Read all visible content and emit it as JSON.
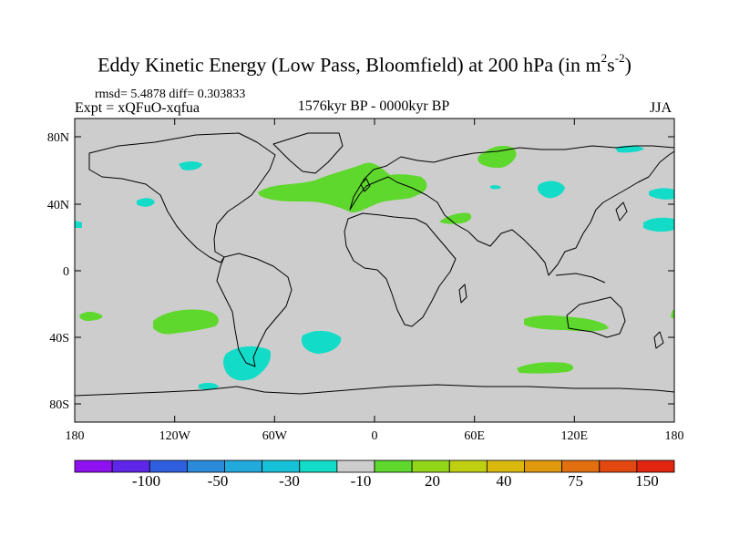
{
  "title": {
    "main": "Eddy Kinetic Energy (Low Pass, Bloomfield) at 200 hPa (in m",
    "sup1": "2",
    "mid": "s",
    "sup2": "-2",
    "close": ")"
  },
  "stats": {
    "rmsd": "rmsd= 5.4878 diff= 0.303833"
  },
  "experiment": "Expt = xQFuO-xqfua",
  "period": "1576kyr BP - 0000kyr BP",
  "season": "JJA",
  "axes": {
    "x_ticks": [
      "180",
      "120W",
      "60W",
      "0",
      "60E",
      "120E",
      "180"
    ],
    "y_ticks": [
      "80N",
      "40N",
      "0",
      "40S",
      "80S"
    ]
  },
  "colorbar": {
    "colors": [
      "#8e11f0",
      "#5e27e8",
      "#2f5fe0",
      "#2b8bda",
      "#22aadd",
      "#17c2d8",
      "#12dcc8",
      "#cdcdcd",
      "#5fd82e",
      "#92d61a",
      "#bfcf11",
      "#dab90e",
      "#e0980c",
      "#e37010",
      "#e2480f",
      "#e22510"
    ],
    "labels": [
      "-100",
      "-50",
      "-30",
      "-10",
      "20",
      "40",
      "75",
      "150"
    ]
  },
  "map": {
    "land_color": "#000000",
    "background_fill": "#cdcdcd",
    "positive_anomaly_color": "#5fd82e",
    "negative_anomaly_color": "#12dcc8"
  }
}
